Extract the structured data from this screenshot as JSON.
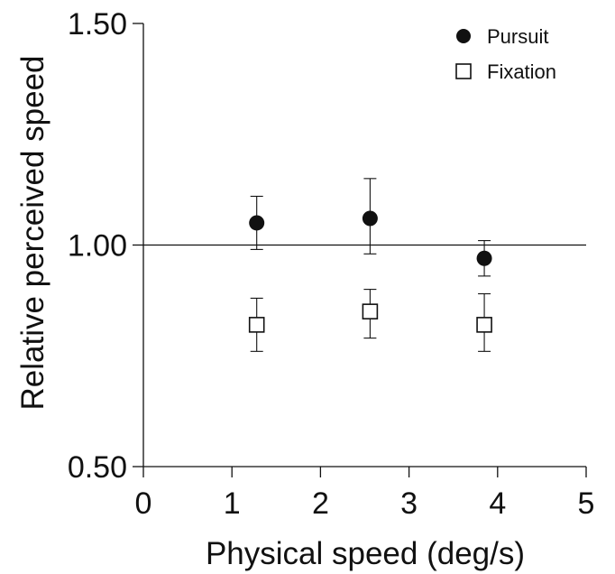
{
  "chart_data": {
    "type": "scatter",
    "title": "",
    "xlabel": "Physical speed (deg/s)",
    "ylabel": "Relative perceived speed",
    "xlim": [
      0,
      5
    ],
    "ylim": [
      0.5,
      1.5
    ],
    "x_ticks": [
      0,
      1,
      2,
      3,
      4,
      5
    ],
    "x_tick_labels": [
      "0",
      "1",
      "2",
      "3",
      "4",
      "5"
    ],
    "y_ticks": [
      0.5,
      1.0,
      1.5
    ],
    "y_tick_labels": [
      "0.50",
      "1.00",
      "1.50"
    ],
    "reference_line_y": 1.0,
    "grid": false,
    "legend_position": "top-right",
    "series": [
      {
        "name": "Pursuit",
        "marker": "filled-circle",
        "color": "#111111",
        "points": [
          {
            "x": 1.28,
            "y": 1.05,
            "err_low": 0.99,
            "err_high": 1.11
          },
          {
            "x": 2.56,
            "y": 1.06,
            "err_low": 0.98,
            "err_high": 1.15
          },
          {
            "x": 3.85,
            "y": 0.97,
            "err_low": 0.93,
            "err_high": 1.01
          }
        ]
      },
      {
        "name": "Fixation",
        "marker": "open-square",
        "color": "#111111",
        "points": [
          {
            "x": 1.28,
            "y": 0.82,
            "err_low": 0.76,
            "err_high": 0.88
          },
          {
            "x": 2.56,
            "y": 0.85,
            "err_low": 0.79,
            "err_high": 0.9
          },
          {
            "x": 3.85,
            "y": 0.82,
            "err_low": 0.76,
            "err_high": 0.89
          }
        ]
      }
    ]
  }
}
